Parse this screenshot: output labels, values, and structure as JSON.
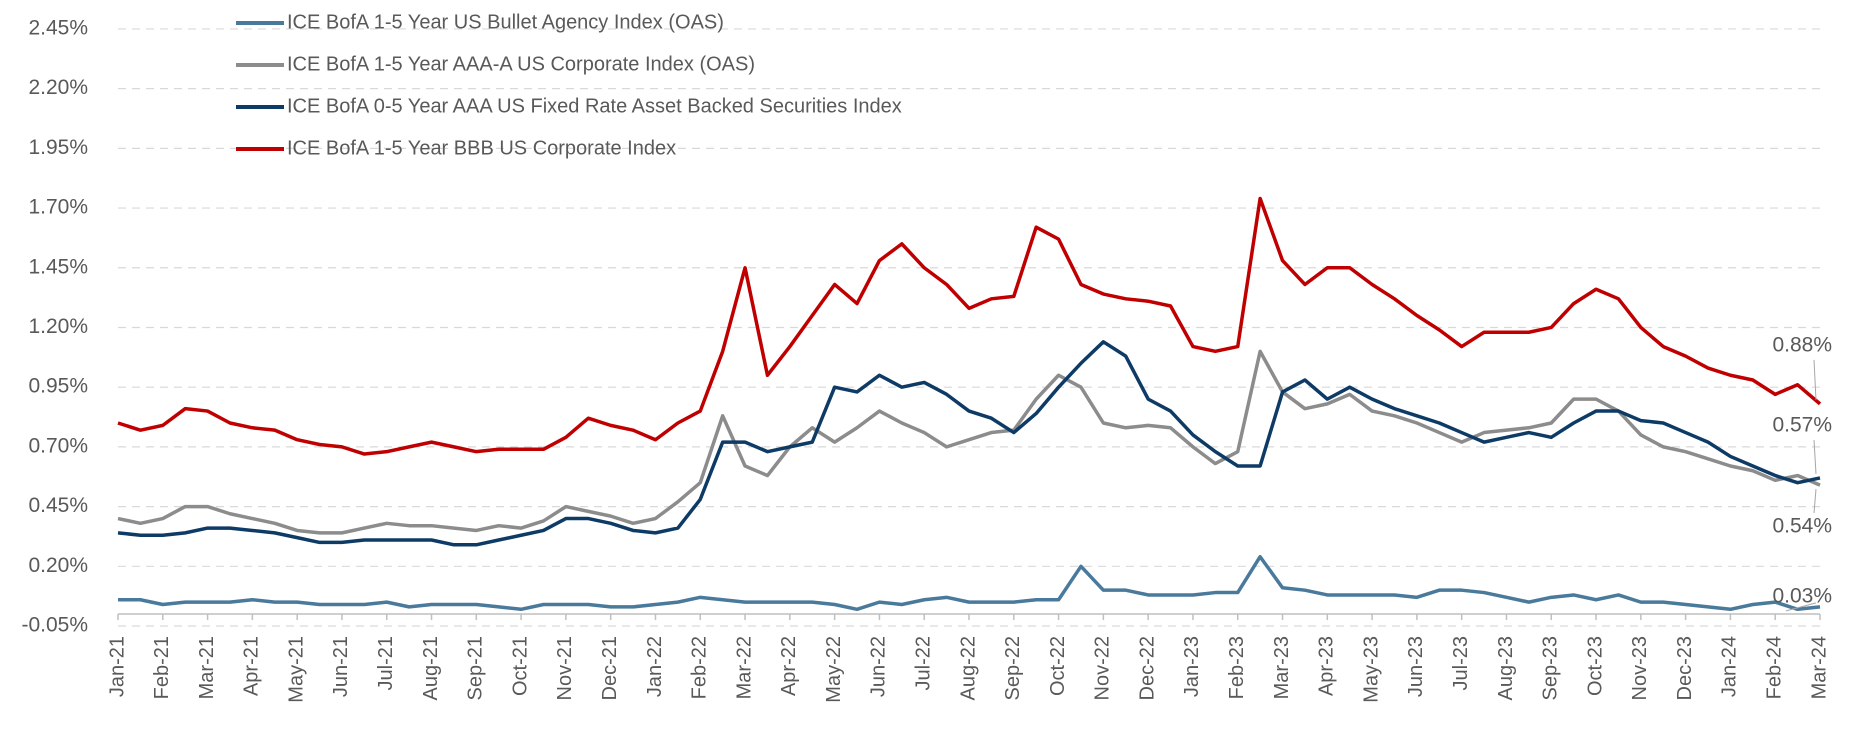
{
  "chart_data": {
    "type": "line",
    "categories": [
      "Jan-21",
      null,
      "Feb-21",
      null,
      "Mar-21",
      null,
      "Apr-21",
      null,
      "May-21",
      null,
      "Jun-21",
      null,
      "Jul-21",
      null,
      "Aug-21",
      null,
      "Sep-21",
      null,
      "Oct-21",
      null,
      "Nov-21",
      null,
      "Dec-21",
      null,
      "Jan-22",
      null,
      "Feb-22",
      null,
      "Mar-22",
      null,
      "Apr-22",
      null,
      "May-22",
      null,
      "Jun-22",
      null,
      "Jul-22",
      null,
      "Aug-22",
      null,
      "Sep-22",
      null,
      "Oct-22",
      null,
      "Nov-22",
      null,
      "Dec-22",
      null,
      "Jan-23",
      null,
      "Feb-23",
      null,
      "Mar-23",
      null,
      "Apr-23",
      null,
      "May-23",
      null,
      "Jun-23",
      null,
      "Jul-23",
      null,
      "Aug-23",
      null,
      "Sep-23",
      null,
      "Oct-23",
      null,
      "Nov-23",
      null,
      "Dec-23",
      null,
      "Jan-24",
      null,
      "Feb-24",
      null,
      "Mar-24"
    ],
    "series": [
      {
        "name": "ICE BofA 1-5 Year US Bullet Agency Index (OAS)",
        "color": "#4a7a9b",
        "values": [
          0.06,
          0.06,
          0.04,
          0.05,
          0.05,
          0.05,
          0.06,
          0.05,
          0.05,
          0.04,
          0.04,
          0.04,
          0.05,
          0.03,
          0.04,
          0.04,
          0.04,
          0.03,
          0.02,
          0.04,
          0.04,
          0.04,
          0.03,
          0.03,
          0.04,
          0.05,
          0.07,
          0.06,
          0.05,
          0.05,
          0.05,
          0.05,
          0.04,
          0.02,
          0.05,
          0.04,
          0.06,
          0.07,
          0.05,
          0.05,
          0.05,
          0.06,
          0.06,
          0.2,
          0.1,
          0.1,
          0.08,
          0.08,
          0.08,
          0.09,
          0.09,
          0.24,
          0.11,
          0.1,
          0.08,
          0.08,
          0.08,
          0.08,
          0.07,
          0.1,
          0.1,
          0.09,
          0.07,
          0.05,
          0.07,
          0.08,
          0.06,
          0.08,
          0.05,
          0.05,
          0.04,
          0.03,
          0.02,
          0.04,
          0.05,
          0.02,
          0.03
        ],
        "value_labels": [
          null,
          null,
          null,
          null,
          null,
          null,
          null,
          null,
          null,
          null,
          null,
          null,
          null,
          null,
          null,
          null,
          null,
          null,
          null,
          null,
          null,
          null,
          null,
          null,
          null,
          null,
          null,
          null,
          null,
          null,
          null,
          null,
          null,
          null,
          null,
          null,
          null,
          null,
          null,
          null,
          null,
          null,
          null,
          null,
          null,
          null,
          null,
          null,
          null,
          null,
          null,
          null,
          null,
          null,
          null,
          null,
          null,
          null,
          null,
          null,
          null,
          null,
          null,
          null,
          null,
          null,
          null,
          null,
          null,
          null,
          null,
          null,
          null,
          null,
          null,
          null,
          "0.03%"
        ]
      },
      {
        "name": "ICE BofA 1-5 Year AAA-A US Corporate Index (OAS)",
        "color": "#8c8c8c",
        "values": [
          0.4,
          0.38,
          0.4,
          0.45,
          0.45,
          0.42,
          0.4,
          0.38,
          0.35,
          0.34,
          0.34,
          0.36,
          0.38,
          0.37,
          0.37,
          0.36,
          0.35,
          0.37,
          0.36,
          0.39,
          0.45,
          0.43,
          0.41,
          0.38,
          0.4,
          0.47,
          0.55,
          0.83,
          0.62,
          0.58,
          0.7,
          0.78,
          0.72,
          0.78,
          0.85,
          0.8,
          0.76,
          0.7,
          0.73,
          0.76,
          0.77,
          0.9,
          1.0,
          0.95,
          0.8,
          0.78,
          0.79,
          0.78,
          0.7,
          0.63,
          0.68,
          1.1,
          0.93,
          0.86,
          0.88,
          0.92,
          0.85,
          0.83,
          0.8,
          0.76,
          0.72,
          0.76,
          0.77,
          0.78,
          0.8,
          0.9,
          0.9,
          0.85,
          0.75,
          0.7,
          0.68,
          0.65,
          0.62,
          0.6,
          0.56,
          0.58,
          0.54
        ],
        "value_labels": [
          null,
          null,
          null,
          null,
          null,
          null,
          null,
          null,
          null,
          null,
          null,
          null,
          null,
          null,
          null,
          null,
          null,
          null,
          null,
          null,
          null,
          null,
          null,
          null,
          null,
          null,
          null,
          null,
          null,
          null,
          null,
          null,
          null,
          null,
          null,
          null,
          null,
          null,
          null,
          null,
          null,
          null,
          null,
          null,
          null,
          null,
          null,
          null,
          null,
          null,
          null,
          null,
          null,
          null,
          null,
          null,
          null,
          null,
          null,
          null,
          null,
          null,
          null,
          null,
          null,
          null,
          null,
          null,
          null,
          null,
          null,
          null,
          null,
          null,
          null,
          null,
          "0.54%"
        ]
      },
      {
        "name": "ICE BofA 0-5 Year AAA US Fixed Rate Asset Backed Securities Index",
        "color": "#0d3b66",
        "values": [
          0.34,
          0.33,
          0.33,
          0.34,
          0.36,
          0.36,
          0.35,
          0.34,
          0.32,
          0.3,
          0.3,
          0.31,
          0.31,
          0.31,
          0.31,
          0.29,
          0.29,
          0.31,
          0.33,
          0.35,
          0.4,
          0.4,
          0.38,
          0.35,
          0.34,
          0.36,
          0.48,
          0.72,
          0.72,
          0.68,
          0.7,
          0.72,
          0.95,
          0.93,
          1.0,
          0.95,
          0.97,
          0.92,
          0.85,
          0.82,
          0.76,
          0.84,
          0.95,
          1.05,
          1.14,
          1.08,
          0.9,
          0.85,
          0.75,
          0.68,
          0.62,
          0.62,
          0.93,
          0.98,
          0.9,
          0.95,
          0.9,
          0.86,
          0.83,
          0.8,
          0.76,
          0.72,
          0.74,
          0.76,
          0.74,
          0.8,
          0.85,
          0.85,
          0.81,
          0.8,
          0.76,
          0.72,
          0.66,
          0.62,
          0.58,
          0.55,
          0.57
        ],
        "value_labels": [
          null,
          null,
          null,
          null,
          null,
          null,
          null,
          null,
          null,
          null,
          null,
          null,
          null,
          null,
          null,
          null,
          null,
          null,
          null,
          null,
          null,
          null,
          null,
          null,
          null,
          null,
          null,
          null,
          null,
          null,
          null,
          null,
          null,
          null,
          null,
          null,
          null,
          null,
          null,
          null,
          null,
          null,
          null,
          null,
          null,
          null,
          null,
          null,
          null,
          null,
          null,
          null,
          null,
          null,
          null,
          null,
          null,
          null,
          null,
          null,
          null,
          null,
          null,
          null,
          null,
          null,
          null,
          null,
          null,
          null,
          null,
          null,
          null,
          null,
          null,
          null,
          "0.57%"
        ]
      },
      {
        "name": "ICE BofA 1-5 Year BBB US Corporate Index",
        "color": "#c00000",
        "values": [
          0.8,
          0.77,
          0.79,
          0.86,
          0.85,
          0.8,
          0.78,
          0.77,
          0.73,
          0.71,
          0.7,
          0.67,
          0.68,
          0.7,
          0.72,
          0.7,
          0.68,
          0.69,
          0.69,
          0.69,
          0.74,
          0.82,
          0.79,
          0.77,
          0.73,
          0.8,
          0.85,
          1.1,
          1.45,
          1.0,
          1.12,
          1.25,
          1.38,
          1.3,
          1.48,
          1.55,
          1.45,
          1.38,
          1.28,
          1.32,
          1.33,
          1.62,
          1.57,
          1.38,
          1.34,
          1.32,
          1.31,
          1.29,
          1.12,
          1.1,
          1.12,
          1.74,
          1.48,
          1.38,
          1.45,
          1.45,
          1.38,
          1.32,
          1.25,
          1.19,
          1.12,
          1.18,
          1.18,
          1.18,
          1.2,
          1.3,
          1.36,
          1.32,
          1.2,
          1.12,
          1.08,
          1.03,
          1.0,
          0.98,
          0.92,
          0.96,
          0.88
        ],
        "value_labels": [
          null,
          null,
          null,
          null,
          null,
          null,
          null,
          null,
          null,
          null,
          null,
          null,
          null,
          null,
          null,
          null,
          null,
          null,
          null,
          null,
          null,
          null,
          null,
          null,
          null,
          null,
          null,
          null,
          null,
          null,
          null,
          null,
          null,
          null,
          null,
          null,
          null,
          null,
          null,
          null,
          null,
          null,
          null,
          null,
          null,
          null,
          null,
          null,
          null,
          null,
          null,
          null,
          null,
          null,
          null,
          null,
          null,
          null,
          null,
          null,
          null,
          null,
          null,
          null,
          null,
          null,
          null,
          null,
          null,
          null,
          null,
          null,
          null,
          null,
          null,
          null,
          "0.88%"
        ]
      }
    ],
    "ylim": [
      -0.05,
      2.5
    ],
    "yticks": [
      {
        "value": -0.05,
        "label": "-0.05%"
      },
      {
        "value": 0.2,
        "label": "0.20%"
      },
      {
        "value": 0.45,
        "label": "0.45%"
      },
      {
        "value": 0.7,
        "label": "0.70%"
      },
      {
        "value": 0.95,
        "label": "0.95%"
      },
      {
        "value": 1.2,
        "label": "1.20%"
      },
      {
        "value": 1.45,
        "label": "1.45%"
      },
      {
        "value": 1.7,
        "label": "1.70%"
      },
      {
        "value": 1.95,
        "label": "1.95%"
      },
      {
        "value": 2.2,
        "label": "2.20%"
      },
      {
        "value": 2.45,
        "label": "2.45%"
      }
    ],
    "grid": true,
    "legend": "top-left"
  }
}
